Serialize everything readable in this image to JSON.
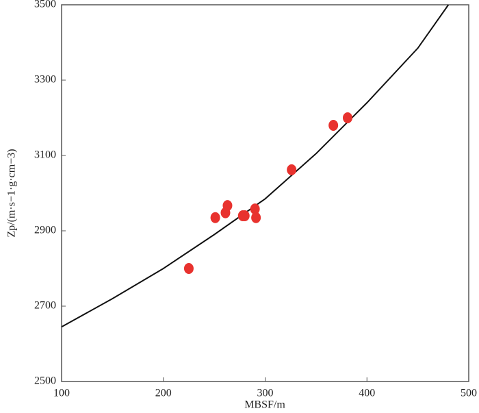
{
  "chart_data": {
    "type": "scatter",
    "x_label": "MBSF/m",
    "y_label": "Zp/(m·s−1·g·cm−3)",
    "xlim": [
      100,
      500
    ],
    "xticks": [
      100,
      200,
      300,
      400,
      500
    ],
    "ylim": [
      2500,
      3500
    ],
    "yticks": [
      2500,
      2700,
      2900,
      3100,
      3300,
      3500
    ],
    "grid": false,
    "points": {
      "color": "#e8322e",
      "x": [
        225,
        251,
        261,
        263,
        278,
        280,
        290,
        291,
        326,
        367,
        381
      ],
      "y": [
        2800,
        2935,
        2948,
        2967,
        2940,
        2940,
        2958,
        2935,
        3062,
        3180,
        3200
      ]
    },
    "curve": {
      "color": "#111111",
      "x": [
        100,
        150,
        200,
        250,
        300,
        350,
        400,
        450,
        480
      ],
      "y": [
        2645,
        2720,
        2800,
        2890,
        2985,
        3105,
        3240,
        3385,
        3500
      ]
    }
  }
}
